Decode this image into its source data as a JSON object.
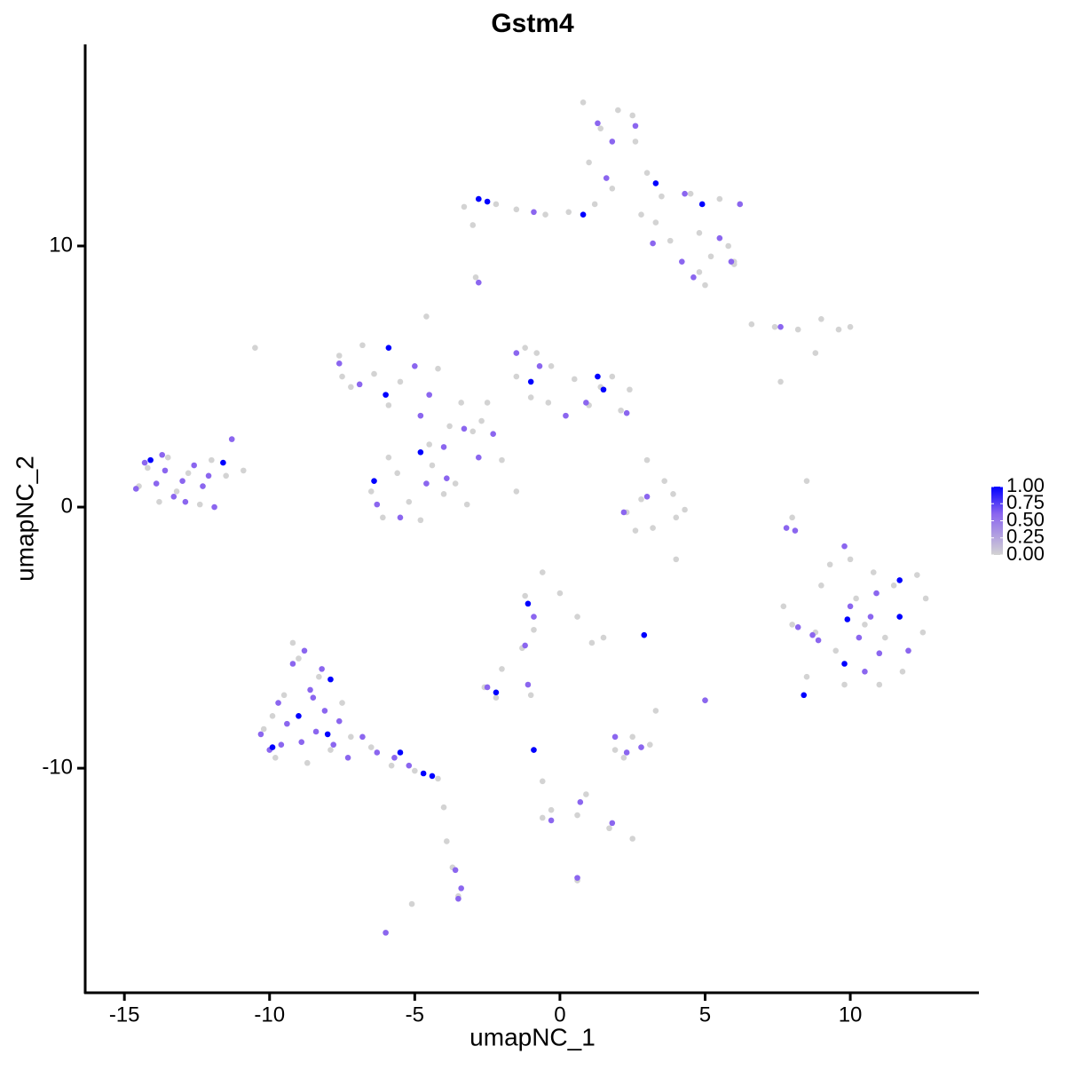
{
  "chart_data": {
    "type": "scatter",
    "title": "Gstm4",
    "x_label": "umapNC_1",
    "y_label": "umapNC_2",
    "xlim": [
      -16.35,
      14.43
    ],
    "ylim": [
      -18.6,
      17.72
    ],
    "xticks": [
      -15,
      -10,
      -5,
      0,
      5,
      10
    ],
    "yticks": [
      -10,
      0,
      10
    ],
    "color_stops": [
      [
        0,
        "#d3d3d3"
      ],
      [
        0.6,
        "#8b66ef"
      ],
      [
        1,
        "#0000ff"
      ]
    ],
    "colorbar": {
      "lim": [
        0,
        1
      ],
      "ticks": [
        {
          "value": 0,
          "label": "0.00"
        },
        {
          "value": 0.25,
          "label": "0.25"
        },
        {
          "value": 0.5,
          "label": "0.50"
        },
        {
          "value": 0.75,
          "label": "0.75"
        },
        {
          "value": 1,
          "label": "1.00"
        }
      ]
    },
    "x": [
      -14.5,
      -14.2,
      -13.8,
      -13.5,
      -13.2,
      -12.8,
      -12.4,
      -12.0,
      -11.5,
      -10.9,
      -10.2,
      -9.8,
      -9.5,
      -9.0,
      -8.7,
      -8.3,
      -7.9,
      -7.5,
      -7.2,
      -9.9,
      -6.5,
      -5.8,
      -5.0,
      -4.2,
      -4.0,
      -3.9,
      -3.7,
      -3.5,
      -6.0,
      -9.2,
      -7.6,
      -7.2,
      -6.8,
      -6.4,
      -5.9,
      -5.5,
      -7.5,
      -4.6,
      -4.2,
      -10.5,
      -6.5,
      -6.1,
      -5.6,
      -5.2,
      -4.8,
      -4.4,
      -4.0,
      -3.6,
      -3.2,
      -5.9,
      -3.8,
      -3.0,
      -2.5,
      -1.5,
      -1.0,
      -0.3,
      0.5,
      1.4,
      2.1,
      2.4,
      -1.2,
      -0.4,
      1.0,
      -2.0,
      -1.5,
      -4.5,
      -2.7,
      -0.8,
      1.8,
      -3.4,
      -3.3,
      -2.8,
      -2.2,
      -1.5,
      -0.5,
      0.3,
      1.2,
      1.0,
      1.4,
      2.0,
      2.6,
      3.0,
      3.5,
      4.5,
      5.5,
      4.8,
      5.8,
      6.0,
      4.8,
      3.8,
      0.8,
      2.5,
      1.8,
      2.8,
      -3.0,
      5.2,
      6.2,
      5.0,
      -2.9,
      3.3,
      6.6,
      7.4,
      8.2,
      9.0,
      9.6,
      10.0,
      8.8,
      7.6,
      8.5,
      8.0,
      2.3,
      2.8,
      3.2,
      3.6,
      4.0,
      4.3,
      3.0,
      2.6,
      3.9,
      4.0,
      8.0,
      8.5,
      9.0,
      9.5,
      10.0,
      10.5,
      11.0,
      11.5,
      12.0,
      12.6,
      8.8,
      9.8,
      10.8,
      11.8,
      12.3,
      7.7,
      10.2,
      11.2,
      9.3,
      12.5,
      -1.2,
      -0.6,
      0.0,
      0.6,
      1.1,
      -0.9,
      -1.3,
      -2.0,
      -2.6,
      -2.2,
      1.9,
      2.5,
      3.1,
      2.2,
      -0.9,
      -0.6,
      -0.3,
      0.6,
      1.7,
      2.5,
      2.9,
      5.0,
      -1.0,
      3.3,
      0.6,
      -5.1,
      0.9,
      -0.6,
      6.0,
      1.5,
      -14.3,
      -13.9,
      -13.6,
      -13.3,
      -13.0,
      -12.6,
      -12.3,
      -11.9,
      -11.6,
      -14.1,
      -14.6,
      -13.7,
      -12.9,
      -12.1,
      -11.3,
      -10.3,
      -10.0,
      -9.7,
      -9.4,
      -9.2,
      -8.9,
      -8.6,
      -8.4,
      -8.1,
      -7.8,
      -7.6,
      -7.3,
      -9.6,
      -8.8,
      -8.2,
      -9.0,
      -8.0,
      -7.9,
      -9.9,
      -8.5,
      -6.8,
      -6.3,
      -5.7,
      -5.2,
      -4.7,
      -4.4,
      -5.5,
      -3.6,
      -3.5,
      -3.4,
      -7.6,
      -6.9,
      -6.0,
      -5.9,
      -5.0,
      -4.8,
      -4.8,
      -6.4,
      -6.3,
      -5.5,
      -4.6,
      -4.0,
      -3.3,
      -2.8,
      -1.5,
      -1.0,
      -0.7,
      0.2,
      1.3,
      1.5,
      2.3,
      0.9,
      -2.3,
      -4.5,
      -3.9,
      -2.8,
      -2.5,
      0.8,
      3.3,
      4.9,
      1.3,
      1.8,
      2.6,
      4.3,
      3.2,
      4.6,
      5.9,
      5.5,
      -0.9,
      -2.8,
      1.6,
      4.2,
      6.2,
      7.6,
      3.0,
      2.2,
      -1.1,
      -0.9,
      -1.2,
      -2.2,
      -2.5,
      2.9,
      -0.9,
      -0.3,
      0.7,
      1.8,
      2.3,
      2.8,
      1.9,
      5.0,
      -1.1,
      0.6,
      -6.0,
      11.7,
      11.7,
      9.9,
      9.8,
      8.4,
      8.9,
      10.7,
      10.3,
      11.0,
      8.7,
      10.5,
      8.2,
      12.0,
      10.9,
      10.0,
      7.8,
      9.8,
      8.1
    ],
    "y": [
      0.8,
      1.5,
      0.2,
      1.9,
      0.6,
      1.3,
      0.1,
      1.8,
      1.2,
      1.4,
      -8.5,
      -9.6,
      -7.2,
      -5.8,
      -9.8,
      -6.5,
      -9.3,
      -7.5,
      -8.8,
      -8.0,
      -9.2,
      -9.9,
      -10.1,
      -10.4,
      -11.5,
      -12.8,
      -13.8,
      -14.9,
      -16.3,
      -5.2,
      5.8,
      4.6,
      6.2,
      5.1,
      3.9,
      4.8,
      5.0,
      7.3,
      5.3,
      6.1,
      0.6,
      -0.4,
      1.3,
      0.2,
      -0.5,
      1.6,
      0.5,
      0.9,
      0.1,
      1.9,
      3.1,
      2.9,
      4.0,
      5.0,
      4.2,
      5.4,
      4.9,
      4.6,
      3.7,
      4.5,
      6.1,
      4.0,
      3.9,
      1.8,
      0.6,
      2.4,
      3.3,
      5.9,
      5.0,
      4.0,
      11.5,
      11.8,
      11.6,
      11.4,
      11.2,
      11.3,
      11.6,
      13.2,
      14.5,
      15.2,
      14.0,
      12.8,
      11.9,
      12.0,
      11.8,
      10.5,
      10.0,
      9.4,
      9.0,
      10.2,
      15.5,
      15.0,
      12.2,
      11.2,
      10.8,
      9.6,
      11.6,
      8.5,
      8.8,
      10.9,
      7.0,
      6.9,
      6.8,
      7.2,
      6.8,
      6.9,
      5.9,
      4.8,
      1.0,
      -0.4,
      -0.2,
      0.3,
      -0.8,
      1.0,
      -0.4,
      -0.1,
      1.8,
      -0.9,
      0.5,
      -2.0,
      -4.5,
      -6.5,
      -3.0,
      -5.5,
      -2.0,
      -4.5,
      -6.8,
      -3.0,
      -5.5,
      -3.5,
      -4.8,
      -6.8,
      -2.5,
      -6.3,
      -2.6,
      -3.8,
      -3.5,
      -5.0,
      -2.2,
      -4.8,
      -3.4,
      -2.5,
      -3.3,
      -4.2,
      -5.2,
      -4.7,
      -5.4,
      -6.2,
      -6.9,
      -7.3,
      -9.3,
      -8.8,
      -9.1,
      -9.6,
      -9.3,
      -10.5,
      -11.6,
      -11.8,
      -12.3,
      -12.7,
      -4.9,
      -7.4,
      -7.2,
      -7.8,
      -14.3,
      -15.2,
      -11.0,
      -11.9,
      9.3,
      -5.0,
      1.7,
      0.9,
      1.4,
      0.4,
      1.0,
      1.6,
      0.8,
      0.0,
      1.7,
      1.8,
      0.7,
      2.0,
      0.2,
      1.2,
      2.6,
      -8.7,
      -9.3,
      -7.5,
      -8.3,
      -6.0,
      -9.0,
      -7.0,
      -8.6,
      -7.8,
      -9.1,
      -8.2,
      -9.6,
      -9.1,
      -5.5,
      -6.2,
      -8.0,
      -8.7,
      -6.6,
      -9.2,
      -7.3,
      -8.8,
      -9.4,
      -9.6,
      -9.9,
      -10.2,
      -10.3,
      -9.4,
      -13.9,
      -15.0,
      -14.6,
      5.5,
      4.7,
      4.3,
      6.1,
      5.4,
      3.5,
      2.1,
      1.0,
      0.1,
      -0.4,
      0.9,
      2.3,
      3.0,
      1.9,
      5.9,
      4.8,
      5.4,
      3.5,
      5.0,
      4.5,
      3.6,
      4.0,
      2.8,
      4.3,
      1.1,
      11.8,
      11.7,
      11.2,
      12.4,
      11.6,
      14.7,
      14.0,
      14.6,
      12.0,
      10.1,
      8.8,
      9.4,
      10.3,
      11.3,
      8.6,
      12.6,
      9.4,
      11.6,
      6.9,
      0.4,
      -0.2,
      -3.7,
      -4.2,
      -5.3,
      -7.1,
      -6.9,
      -4.9,
      -9.3,
      -12.0,
      -11.3,
      -12.1,
      -9.4,
      -9.2,
      -8.8,
      -7.4,
      -6.8,
      -14.2,
      -16.3,
      -2.8,
      -4.2,
      -4.3,
      -6.0,
      -7.2,
      -5.1,
      -4.2,
      -5.0,
      -5.6,
      -4.9,
      -6.3,
      -4.6,
      -5.5,
      -3.3,
      -3.8,
      -0.8,
      -1.5,
      -0.9
    ],
    "values": [
      0,
      0,
      0,
      0,
      0,
      0,
      0,
      0,
      0,
      0,
      0,
      0,
      0,
      0,
      0,
      0,
      0,
      0,
      0,
      0,
      0,
      0,
      0,
      0,
      0,
      0,
      0,
      0,
      0,
      0,
      0,
      0,
      0,
      0,
      0,
      0,
      0,
      0,
      0,
      0,
      0,
      0,
      0,
      0,
      0,
      0,
      0,
      0,
      0,
      0,
      0,
      0,
      0,
      0,
      0,
      0,
      0,
      0,
      0,
      0,
      0,
      0,
      0,
      0,
      0,
      0,
      0,
      0,
      0,
      0,
      0,
      0,
      0,
      0,
      0,
      0,
      0,
      0,
      0,
      0,
      0,
      0,
      0,
      0,
      0,
      0,
      0,
      0,
      0,
      0,
      0,
      0,
      0,
      0,
      0,
      0,
      0,
      0,
      0,
      0,
      0,
      0,
      0,
      0,
      0,
      0,
      0,
      0,
      0,
      0,
      0,
      0,
      0,
      0,
      0,
      0,
      0,
      0,
      0,
      0,
      0,
      0,
      0,
      0,
      0,
      0,
      0,
      0,
      0,
      0,
      0,
      0,
      0,
      0,
      0,
      0,
      0,
      0,
      0,
      0,
      0,
      0,
      0,
      0,
      0,
      0,
      0,
      0,
      0,
      0,
      0,
      0,
      0,
      0,
      0,
      0,
      0,
      0,
      0,
      0,
      0,
      0,
      0,
      0,
      0,
      0,
      0,
      0,
      0,
      0,
      0.6,
      0.6,
      0.6,
      0.6,
      0.6,
      0.6,
      0.6,
      0.6,
      1,
      1,
      0.6,
      0.6,
      0.6,
      0.6,
      0.6,
      0.6,
      0.6,
      0.6,
      0.6,
      0.6,
      0.6,
      0.6,
      0.6,
      0.6,
      0.6,
      0.6,
      0.6,
      0.6,
      0.6,
      0.6,
      1,
      1,
      1,
      1,
      0.6,
      0.6,
      0.6,
      0.6,
      0.6,
      1,
      1,
      1,
      0.6,
      0.6,
      0.6,
      0.6,
      0.6,
      1,
      1,
      0.6,
      0.6,
      1,
      1,
      0.6,
      0.6,
      0.6,
      0.6,
      0.6,
      0.6,
      0.6,
      1,
      0.6,
      0.6,
      1,
      1,
      0.6,
      0.6,
      0.6,
      0.6,
      0.6,
      1,
      1,
      1,
      1,
      1,
      0.6,
      0.6,
      0.6,
      0.6,
      0.6,
      0.6,
      0.6,
      0.6,
      0.6,
      0.6,
      0.6,
      0.6,
      0.6,
      0.6,
      0.6,
      0.6,
      1,
      0.6,
      0.6,
      1,
      0.6,
      1,
      1,
      0.6,
      0.6,
      0.6,
      0.6,
      0.6,
      0.6,
      0.6,
      0.6,
      0.6,
      0.6,
      1,
      1,
      1,
      1,
      1,
      0.6,
      0.6,
      0.6,
      0.6,
      0.6,
      0.6,
      0.6,
      0.6,
      0.6,
      0.6,
      0.6,
      0.6,
      0.6
    ]
  }
}
